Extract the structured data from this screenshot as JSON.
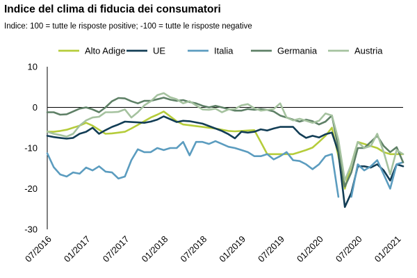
{
  "chart_data": {
    "type": "line",
    "title": "Indice del clima di fiducia dei consumatori",
    "subtitle": "Indice: 100 = tutte le risposte positive; -100 =  tutte le risposte negative",
    "xlabel": "",
    "ylabel": "",
    "ylim": [
      -30,
      10
    ],
    "yticks": [
      10,
      0,
      -10,
      -20,
      -30
    ],
    "xticks": [
      "07/2016",
      "01/2017",
      "07/2017",
      "01/2018",
      "07/2018",
      "01/2019",
      "07/2019",
      "01/2020",
      "07/2020",
      "01/2021"
    ],
    "x": [
      "07/2016",
      "08/2016",
      "09/2016",
      "10/2016",
      "11/2016",
      "12/2016",
      "01/2017",
      "02/2017",
      "03/2017",
      "04/2017",
      "05/2017",
      "06/2017",
      "07/2017",
      "08/2017",
      "09/2017",
      "10/2017",
      "11/2017",
      "12/2017",
      "01/2018",
      "02/2018",
      "03/2018",
      "04/2018",
      "05/2018",
      "06/2018",
      "07/2018",
      "08/2018",
      "09/2018",
      "10/2018",
      "11/2018",
      "12/2018",
      "01/2019",
      "02/2019",
      "03/2019",
      "04/2019",
      "05/2019",
      "06/2019",
      "07/2019",
      "08/2019",
      "09/2019",
      "10/2019",
      "11/2019",
      "12/2019",
      "01/2020",
      "02/2020",
      "03/2020",
      "04/2020",
      "05/2020",
      "06/2020",
      "07/2020",
      "08/2020",
      "09/2020",
      "10/2020",
      "11/2020",
      "12/2020",
      "01/2021",
      "02/2021"
    ],
    "grid": false,
    "zero_line": true,
    "legend_position": "top",
    "series": [
      {
        "name": "Alto Adige",
        "color": "#b5cc3a",
        "values": [
          -6.0,
          -6.0,
          -5.8,
          -5.5,
          -5.0,
          -4.5,
          -3.8,
          -4.5,
          -5.5,
          -6.5,
          -6.4,
          -6.2,
          -6.0,
          -5.2,
          -4.3,
          -3.4,
          -2.5,
          -1.8,
          -1.0,
          -2.2,
          -3.4,
          -4.2,
          -4.4,
          -4.6,
          -4.8,
          -5.0,
          -5.2,
          -5.5,
          -5.8,
          -5.9,
          -5.8,
          -5.7,
          -5.6,
          -8.5,
          -11.5,
          -11.5,
          -11.5,
          -11.5,
          -11.5,
          -11.0,
          -10.5,
          -9.9,
          -8.5,
          -7.0,
          -5.0,
          -12.0,
          -20.0,
          -14.0,
          -8.5,
          -9.0,
          -9.5,
          -10.0,
          -11.0,
          -11.5,
          -11.5,
          -11.5
        ]
      },
      {
        "name": "UE",
        "color": "#123d55",
        "values": [
          -7.0,
          -7.3,
          -7.5,
          -7.7,
          -7.5,
          -6.5,
          -6.0,
          -5.0,
          -6.5,
          -5.6,
          -4.8,
          -4.2,
          -3.5,
          -3.6,
          -3.7,
          -3.8,
          -3.5,
          -3.0,
          -2.2,
          -2.9,
          -3.6,
          -3.3,
          -3.4,
          -3.7,
          -4.0,
          -4.6,
          -5.2,
          -5.8,
          -6.6,
          -7.6,
          -6.0,
          -6.2,
          -6.0,
          -5.4,
          -5.7,
          -5.2,
          -4.8,
          -4.8,
          -4.8,
          -6.5,
          -7.5,
          -7.0,
          -7.4,
          -6.6,
          -6.2,
          -11.0,
          -24.5,
          -21.0,
          -14.5,
          -14.5,
          -14.8,
          -14.0,
          -15.5,
          -18.0,
          -14.0,
          -14.5
        ]
      },
      {
        "name": "Italia",
        "color": "#5b9cbf",
        "values": [
          -11.3,
          -14.7,
          -16.5,
          -17.0,
          -16.0,
          -16.3,
          -14.8,
          -15.5,
          -14.5,
          -15.8,
          -16.0,
          -17.5,
          -17.0,
          -13.0,
          -10.3,
          -11.0,
          -11.0,
          -10.0,
          -10.5,
          -10.0,
          -10.0,
          -8.5,
          -11.8,
          -8.5,
          -8.5,
          -9.0,
          -8.3,
          -9.0,
          -9.7,
          -10.0,
          -10.5,
          -11.0,
          -12.0,
          -12.0,
          -11.5,
          -12.8,
          -12.0,
          -11.0,
          -13.0,
          -13.2,
          -14.0,
          -15.2,
          -14.0,
          -12.0,
          -11.5,
          -22.0,
          null,
          -22.0,
          -14.0,
          -15.5,
          -14.5,
          -13.0,
          -16.5,
          -20.0,
          -14.0,
          -13.5
        ]
      },
      {
        "name": "Germania",
        "color": "#5e8066",
        "values": [
          -1.2,
          -1.2,
          -1.8,
          -1.7,
          -1.0,
          -0.3,
          0.0,
          -0.5,
          -1.2,
          0.0,
          1.5,
          2.3,
          2.2,
          1.5,
          1.0,
          1.6,
          1.6,
          2.0,
          2.4,
          1.9,
          1.6,
          1.8,
          1.3,
          1.0,
          0.4,
          0.0,
          0.4,
          0.0,
          -0.4,
          -0.8,
          -0.8,
          -0.4,
          -0.6,
          -0.4,
          -0.6,
          -1.0,
          -2.0,
          -2.5,
          -3.0,
          -3.5,
          -3.0,
          -3.4,
          -4.2,
          -3.5,
          -2.0,
          -10.0,
          -19.5,
          -16.0,
          -10.0,
          -10.0,
          -8.5,
          -7.0,
          -9.5,
          -11.0,
          -9.8,
          -13.5
        ]
      },
      {
        "name": "Austria",
        "color": "#a5c29f",
        "values": [
          -6.0,
          -6.5,
          -6.8,
          -7.2,
          -6.5,
          -4.5,
          -3.2,
          -2.5,
          -2.3,
          -1.2,
          -1.2,
          -1.1,
          -0.5,
          -2.5,
          -1.2,
          0.5,
          1.5,
          3.0,
          3.5,
          2.5,
          2.0,
          1.0,
          1.5,
          0.5,
          -0.5,
          -0.6,
          -0.3,
          -1.2,
          -0.5,
          -0.4,
          0.5,
          0.8,
          -0.2,
          -0.8,
          -0.6,
          -0.4,
          1.0,
          -2.5,
          -3.2,
          -2.8,
          -3.3,
          -3.8,
          -3.3,
          -1.5,
          -2.0,
          -8.0,
          -18.0,
          -14.0,
          -8.5,
          -10.0,
          -9.5,
          -6.5,
          -11.0,
          -16.5,
          -10.5,
          -11.5
        ]
      }
    ]
  }
}
